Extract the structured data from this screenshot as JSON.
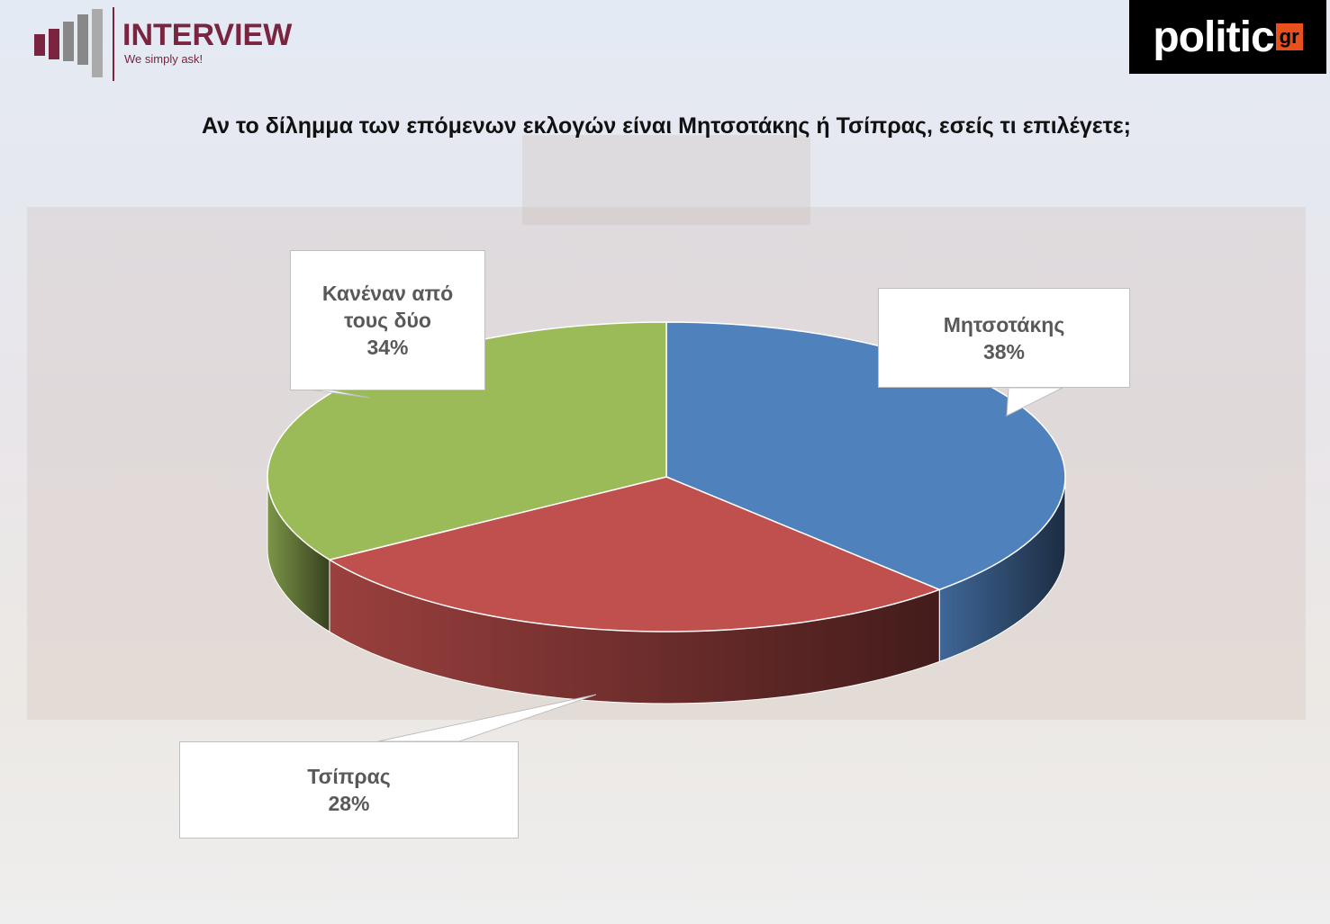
{
  "header": {
    "logo": "INTERVIEW",
    "tagline": "We simply ask!",
    "brand": "politic",
    "brand_suffix": "gr"
  },
  "chart_data": {
    "type": "pie3d",
    "title": "Αν το δίλημμα των επόμενων εκλογών είναι Μητσοτάκης ή Τσίπρας, εσείς τι επιλέγετε;",
    "categories": [
      "Μητσοτάκης",
      "Τσίπρας",
      "Κανέναν από τους δύο"
    ],
    "values": [
      38,
      28,
      34
    ],
    "value_labels": [
      "38%",
      "28%",
      "34%"
    ],
    "colors": [
      "#4f81bd",
      "#c0504d",
      "#9bbb59"
    ]
  }
}
